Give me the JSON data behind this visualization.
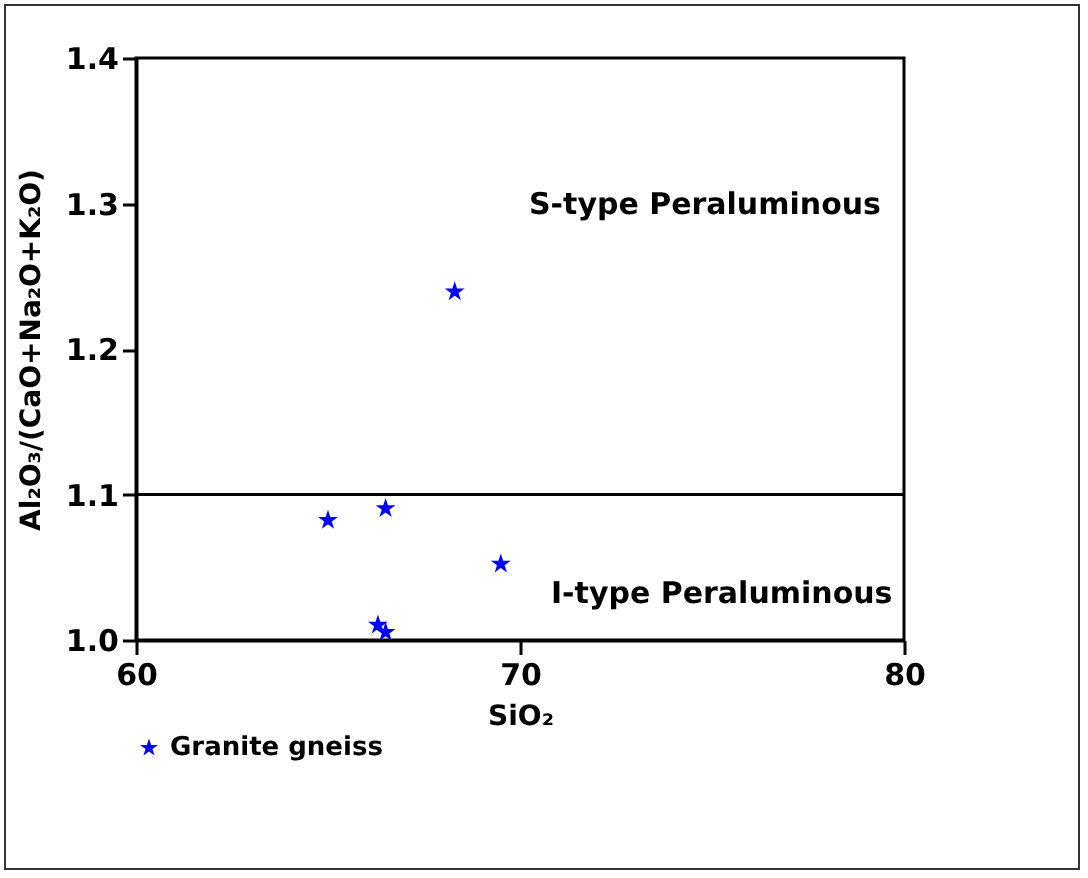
{
  "chart_data": {
    "type": "scatter",
    "xlabel": "SiO₂",
    "ylabel": "Al₂O₃/(CaO+Na₂O+K₂O)",
    "xlim": [
      60,
      80
    ],
    "xticks": [
      60,
      70,
      80
    ],
    "ylim": [
      1.0,
      1.4
    ],
    "yticks": [
      {
        "value": 1,
        "label": "1.0"
      },
      1.1,
      1.2,
      1.3,
      1.4
    ],
    "series": [
      {
        "name": "Granite gneiss",
        "color": "#0000ff",
        "x": [
          68.3,
          65.0,
          66.5,
          69.5,
          66.3,
          66.5
        ],
        "values": [
          1.24,
          1.083,
          1.091,
          1.053,
          1.011,
          1.006
        ]
      }
    ],
    "marker": "star",
    "legend": "bottom",
    "grid": false,
    "ref_lines": [
      {
        "axis": "y",
        "value": 1.1,
        "color": "#000000"
      }
    ],
    "annotations": [
      "S-type Peraluminous",
      "I-type Peraluminous"
    ]
  }
}
